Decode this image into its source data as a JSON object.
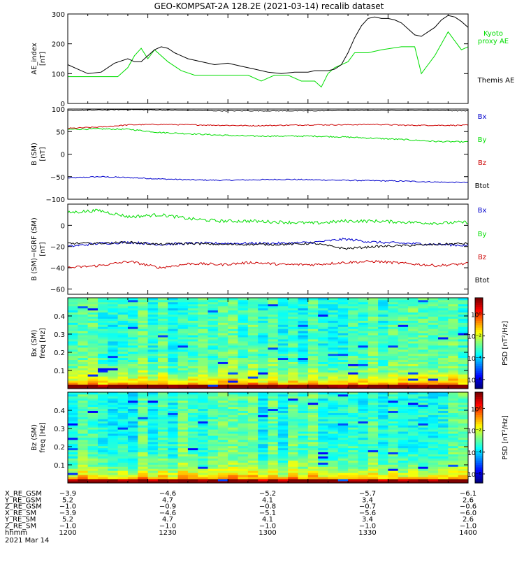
{
  "title": "GEO-KOMPSAT-2A 128.2E (2021-03-14) recalib dataset",
  "colors": {
    "black": "#000000",
    "red": "#cc0000",
    "green": "#00dd00",
    "blue": "#0000cc"
  },
  "chart_data": [
    {
      "type": "line",
      "ylabel": "AE_index",
      "yunit": "[nT]",
      "ylim": [
        0,
        300
      ],
      "yticks": [
        "0",
        "100",
        "200",
        "300"
      ],
      "xlim": [
        0,
        120
      ],
      "series": [
        {
          "name": "Kyoto proxy AE",
          "label_lines": [
            "Kyoto",
            "proxy AE"
          ],
          "color": "green",
          "x": [
            0,
            5,
            10,
            15,
            18,
            20,
            22,
            24,
            26,
            30,
            34,
            38,
            42,
            48,
            54,
            58,
            62,
            66,
            70,
            74,
            76,
            78,
            80,
            84,
            86,
            88,
            90,
            94,
            100,
            104,
            106,
            108,
            110,
            112,
            114,
            116,
            118,
            120
          ],
          "y": [
            90,
            90,
            90,
            90,
            120,
            160,
            185,
            150,
            180,
            140,
            110,
            95,
            95,
            95,
            95,
            75,
            95,
            95,
            75,
            75,
            55,
            100,
            120,
            140,
            170,
            170,
            170,
            180,
            190,
            190,
            100,
            130,
            160,
            200,
            240,
            210,
            180,
            190
          ]
        },
        {
          "name": "Themis AE",
          "label_lines": [
            "Themis AE"
          ],
          "color": "black",
          "x": [
            0,
            3,
            6,
            10,
            14,
            18,
            20,
            22,
            24,
            26,
            28,
            30,
            32,
            36,
            40,
            44,
            48,
            52,
            56,
            60,
            64,
            68,
            72,
            74,
            76,
            78,
            80,
            82,
            84,
            86,
            88,
            90,
            92,
            94,
            96,
            98,
            100,
            102,
            104,
            106,
            108,
            110,
            112,
            114,
            116,
            118,
            120
          ],
          "y": [
            130,
            115,
            100,
            105,
            135,
            150,
            140,
            140,
            160,
            180,
            190,
            185,
            170,
            150,
            140,
            130,
            135,
            125,
            115,
            105,
            100,
            105,
            105,
            110,
            110,
            110,
            115,
            130,
            170,
            220,
            260,
            285,
            290,
            285,
            285,
            280,
            270,
            250,
            230,
            225,
            240,
            255,
            280,
            295,
            290,
            275,
            255
          ]
        }
      ]
    },
    {
      "type": "line",
      "ylabel": "B (SM)",
      "yunit": "[nT]",
      "ylim": [
        -100,
        100
      ],
      "yticks": [
        "−100",
        "−50",
        "0",
        "50",
        "100"
      ],
      "xlim": [
        0,
        120
      ],
      "series": [
        {
          "name": "Bx",
          "color": "blue",
          "base": [
            -53,
            -50,
            -52,
            -55,
            -57,
            -58,
            -57,
            -56,
            -57,
            -58,
            -59,
            -60,
            -62,
            -63
          ],
          "noise": 1.2
        },
        {
          "name": "By",
          "color": "green",
          "base": [
            55,
            56,
            55,
            48,
            45,
            42,
            40,
            40,
            40,
            38,
            35,
            32,
            28,
            27
          ],
          "noise": 1.5
        },
        {
          "name": "Bz",
          "color": "red",
          "base": [
            57,
            60,
            65,
            66,
            65,
            64,
            63,
            64,
            65,
            65,
            66,
            64,
            64,
            64
          ],
          "noise": 1.2
        },
        {
          "name": "Btot",
          "color": "black",
          "base": [
            97,
            98,
            99,
            98,
            97,
            96,
            96,
            96,
            96,
            97,
            97,
            97,
            97,
            96
          ],
          "noise": 0.8
        }
      ]
    },
    {
      "type": "line",
      "ylabel": "B (SM)−IGRF (SM)",
      "yunit": "[nT]",
      "ylim": [
        -65,
        20
      ],
      "yticks": [
        "−60",
        "−40",
        "−20",
        "0"
      ],
      "xlim": [
        0,
        120
      ],
      "series": [
        {
          "name": "Bx",
          "color": "blue",
          "base": [
            -20,
            -17,
            -16,
            -18,
            -17,
            -17,
            -17,
            -17,
            -16,
            -13,
            -16,
            -17,
            -18,
            -19
          ],
          "noise": 1.2
        },
        {
          "name": "By",
          "color": "green",
          "base": [
            12,
            14,
            8,
            10,
            6,
            4,
            4,
            3,
            2,
            4,
            4,
            3,
            2,
            3
          ],
          "noise": 1.5
        },
        {
          "name": "Bz",
          "color": "red",
          "base": [
            -40,
            -38,
            -34,
            -40,
            -36,
            -37,
            -35,
            -37,
            -37,
            -35,
            -34,
            -36,
            -38,
            -36
          ],
          "noise": 1.2
        },
        {
          "name": "Btot",
          "color": "black",
          "base": [
            -17,
            -17,
            -16,
            -18,
            -17,
            -18,
            -18,
            -18,
            -17,
            -22,
            -20,
            -19,
            -18,
            -17
          ],
          "noise": 1.0
        }
      ]
    },
    {
      "type": "heatmap",
      "ylabel": "Bx (SM)",
      "yunit": "freq [Hz]",
      "ylim": [
        0,
        0.5
      ],
      "yticks": [
        "0.1",
        "0.2",
        "0.3",
        "0.4"
      ],
      "colorbar": {
        "label": "PSD [nT²/Hz]",
        "ticks": [
          "10⁰",
          "10⁻²",
          "10⁻⁴",
          "10⁻⁶"
        ]
      }
    },
    {
      "type": "heatmap",
      "ylabel": "Bz (SM)",
      "yunit": "freq [Hz]",
      "ylim": [
        0,
        0.5
      ],
      "yticks": [
        "0.1",
        "0.2",
        "0.3",
        "0.4"
      ],
      "colorbar": {
        "label": "PSD [nT²/Hz]",
        "ticks": [
          "10⁰",
          "10⁻²",
          "10⁻⁴",
          "10⁻⁶"
        ]
      }
    }
  ],
  "ephemeris": {
    "labels": [
      "X_RE_GSM",
      "Y_RE_GSM",
      "Z_RE_GSM",
      "X_RE_SM",
      "Y_RE_SM",
      "Z_RE_SM",
      "hhmm"
    ],
    "columns": [
      [
        "−3.9",
        "5.2",
        "−1.0",
        "−3.9",
        "5.2",
        "−1.0",
        "1200"
      ],
      [
        "−4.6",
        "4.7",
        "−0.9",
        "−4.6",
        "4.7",
        "−1.0",
        "1230"
      ],
      [
        "−5.2",
        "4.1",
        "−0.8",
        "−5.1",
        "4.1",
        "−1.0",
        "1300"
      ],
      [
        "−5.7",
        "3.4",
        "−0.7",
        "−5.6",
        "3.4",
        "−1.0",
        "1330"
      ],
      [
        "−6.1",
        "2.6",
        "−0.6",
        "−6.0",
        "2.6",
        "−1.0",
        "1400"
      ]
    ],
    "date": "2021 Mar 14"
  }
}
